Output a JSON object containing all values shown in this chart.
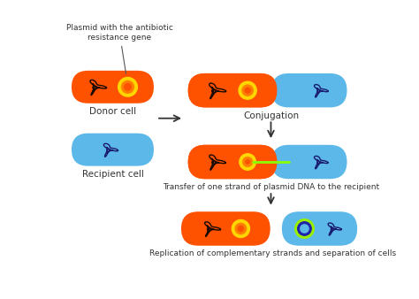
{
  "background_color": "#ffffff",
  "orange_cell_color": "#FF5200",
  "blue_cell_color": "#5BB8E8",
  "plasmid_yellow": "#FFD700",
  "plasmid_orange": "#FF8000",
  "dna_black": "#1a0a00",
  "dna_navy": "#1a1a6e",
  "arrow_color": "#333333",
  "green_strand": "#88FF00",
  "plasmid_green": "#99EE00",
  "plasmid_blue_dark": "#2222AA",
  "label_color": "#333333",
  "labels": {
    "plasmid_annotation": "Plasmid with the antibiotic\nresistance gene",
    "donor": "Donor cell",
    "recipient": "Recipient cell",
    "conjugation": "Conjugation",
    "transfer": "Transfer of one strand of plasmid DNA to the recipient",
    "replication": "Replication of complementary strands and separation of cells"
  },
  "font_size": 7.5,
  "small_font": 6.5
}
